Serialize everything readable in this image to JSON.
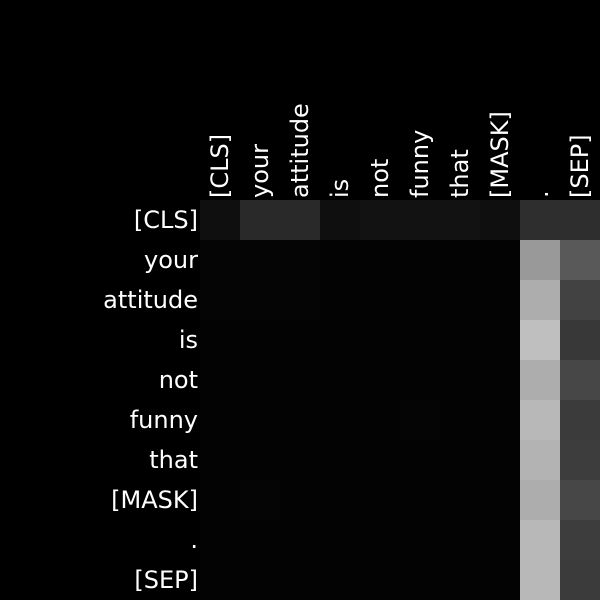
{
  "chart_data": {
    "type": "heatmap",
    "x_labels": [
      "[CLS]",
      "your",
      "attitude",
      "is",
      "not",
      "funny",
      "that",
      "[MASK]",
      ".",
      "[SEP]"
    ],
    "y_labels": [
      "[CLS]",
      "your",
      "attitude",
      "is",
      "not",
      "funny",
      "that",
      "[MASK]",
      ".",
      "[SEP]"
    ],
    "values": [
      [
        0.06,
        0.16,
        0.16,
        0.06,
        0.07,
        0.07,
        0.07,
        0.06,
        0.18,
        0.18
      ],
      [
        0.02,
        0.02,
        0.02,
        0.01,
        0.01,
        0.01,
        0.01,
        0.01,
        0.6,
        0.35
      ],
      [
        0.02,
        0.02,
        0.02,
        0.01,
        0.01,
        0.01,
        0.01,
        0.01,
        0.68,
        0.26
      ],
      [
        0.01,
        0.01,
        0.01,
        0.01,
        0.01,
        0.01,
        0.01,
        0.01,
        0.75,
        0.22
      ],
      [
        0.01,
        0.01,
        0.01,
        0.01,
        0.01,
        0.01,
        0.01,
        0.01,
        0.68,
        0.28
      ],
      [
        0.01,
        0.01,
        0.01,
        0.01,
        0.01,
        0.02,
        0.01,
        0.01,
        0.72,
        0.23
      ],
      [
        0.01,
        0.01,
        0.01,
        0.01,
        0.01,
        0.01,
        0.01,
        0.01,
        0.7,
        0.24
      ],
      [
        0.01,
        0.02,
        0.01,
        0.01,
        0.01,
        0.01,
        0.01,
        0.01,
        0.68,
        0.28
      ],
      [
        0.01,
        0.01,
        0.01,
        0.01,
        0.01,
        0.01,
        0.01,
        0.01,
        0.72,
        0.24
      ],
      [
        0.01,
        0.01,
        0.01,
        0.01,
        0.01,
        0.01,
        0.01,
        0.01,
        0.72,
        0.23
      ]
    ],
    "vmin": 0,
    "vmax": 1,
    "colormap": "grayscale",
    "background": "#000000",
    "label_color": "#ffffff",
    "title": "",
    "xlabel": "",
    "ylabel": "",
    "grid": false,
    "legend": "none"
  }
}
